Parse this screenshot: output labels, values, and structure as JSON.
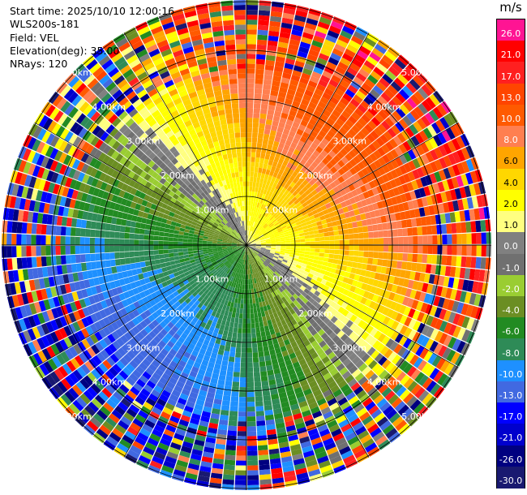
{
  "header": {
    "start_time": "Start time: 2025/10/10 12:00:16",
    "instrument": "WLS200s-181",
    "field": "Field: VEL",
    "elevation": "Elevation(deg): 35.00",
    "nrays": "NRays: 120"
  },
  "colorbar": {
    "unit": "m/s",
    "labels": [
      "26.0",
      "21.0",
      "17.0",
      "13.0",
      "10.0",
      "8.0",
      "6.0",
      "4.0",
      "2.0",
      "1.0",
      "0.0",
      "-1.0",
      "-2.0",
      "-4.0",
      "-6.0",
      "-8.0",
      "-10.0",
      "-13.0",
      "-17.0",
      "-21.0",
      "-26.0",
      "-30.0"
    ],
    "colors": [
      "#ff1493",
      "#ff0000",
      "#ff2020",
      "#ff4500",
      "#ff5a00",
      "#ff7f50",
      "#ffa500",
      "#ffd700",
      "#ffff00",
      "#ffff80",
      "#808080",
      "#707070",
      "#9acd32",
      "#6b8e23",
      "#228b22",
      "#2e8b57",
      "#1e90ff",
      "#4169e1",
      "#0000ff",
      "#0000cd",
      "#000080",
      "#191970"
    ]
  },
  "chart_data": {
    "type": "heatmap",
    "projection": "PPI polar",
    "range_rings_km": [
      1,
      2,
      3,
      4,
      5
    ],
    "ring_labels": [
      "1.00km",
      "2.00km",
      "3.00km",
      "4.00km",
      "5.00km"
    ],
    "n_rays": 120,
    "elevation_deg": 35.0,
    "field": "VEL",
    "value_range": [
      -30,
      26
    ],
    "sectors": [
      {
        "azimuth_deg": [
          0,
          90
        ],
        "near_range_value": 4.0,
        "far_range_value": 13.0
      },
      {
        "azimuth_deg": [
          90,
          180
        ],
        "near_range_value": -2.0,
        "far_range_value": 10.0
      },
      {
        "azimuth_deg": [
          180,
          270
        ],
        "near_range_value": -2.0,
        "far_range_value": -10.0
      },
      {
        "azimuth_deg": [
          270,
          360
        ],
        "near_range_value": 4.0,
        "far_range_value": -6.0
      }
    ]
  }
}
